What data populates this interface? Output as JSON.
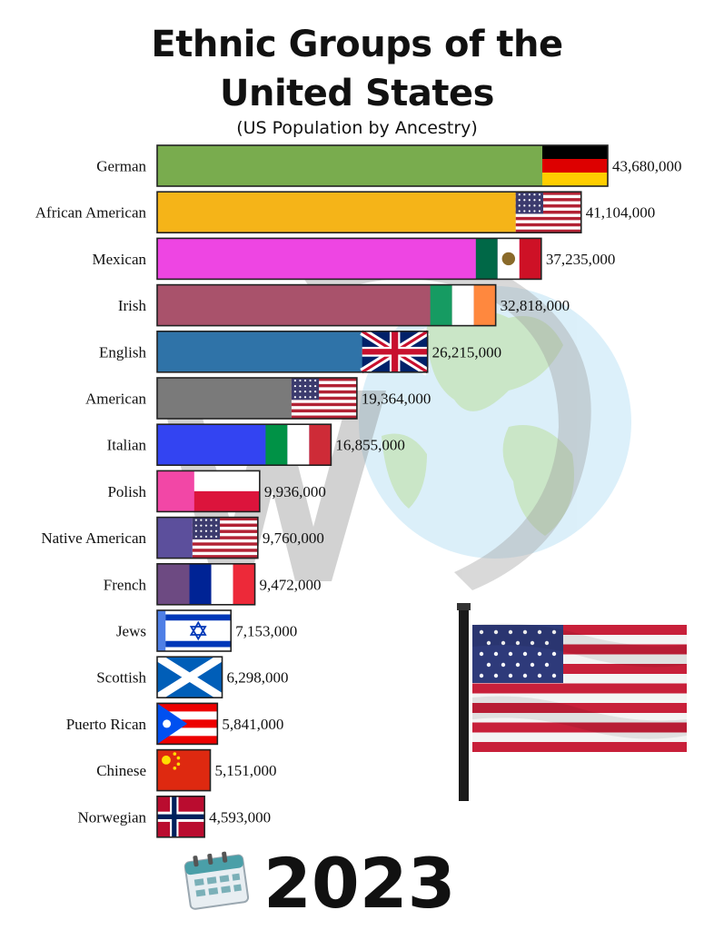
{
  "chart_data": {
    "type": "bar",
    "orientation": "horizontal",
    "title": "Ethnic Groups of the United States",
    "title_lines": [
      "Ethnic Groups of the",
      "United States"
    ],
    "subtitle": "(US Population by Ancestry)",
    "year": "2023",
    "xlim": [
      0,
      43680000
    ],
    "grid": false,
    "legend": "none",
    "categories": [
      "German",
      "African American",
      "Mexican",
      "Irish",
      "English",
      "American",
      "Italian",
      "Polish",
      "Native American",
      "French",
      "Jews",
      "Scottish",
      "Puerto Rican",
      "Chinese",
      "Norwegian"
    ],
    "values": [
      43680000,
      41104000,
      37235000,
      32818000,
      26215000,
      19364000,
      16855000,
      9936000,
      9760000,
      9472000,
      7153000,
      6298000,
      5841000,
      5151000,
      4593000
    ],
    "value_labels": [
      "43,680,000",
      "41,104,000",
      "37,235,000",
      "32,818,000",
      "26,215,000",
      "19,364,000",
      "16,855,000",
      "9,936,000",
      "9,760,000",
      "9,472,000",
      "7,153,000",
      "6,298,000",
      "5,841,000",
      "5,151,000",
      "4,593,000"
    ],
    "colors": [
      "#79ac4e",
      "#f5b418",
      "#ee45e3",
      "#a9526b",
      "#2f73a8",
      "#7a7a7a",
      "#3344f2",
      "#f247a6",
      "#5c4f9c",
      "#6d4a82",
      "#4f7fe6",
      "#1b62b3",
      "#d9273a",
      "#e02010",
      "#c42733"
    ],
    "flags": [
      "germany-flag-icon",
      "usa-flag-icon",
      "mexico-flag-icon",
      "ireland-flag-icon",
      "uk-flag-icon",
      "usa-flag-icon",
      "italy-flag-icon",
      "poland-flag-icon",
      "usa-flag-icon",
      "france-flag-icon",
      "israel-flag-icon",
      "scotland-flag-icon",
      "puerto-rico-flag-icon",
      "china-flag-icon",
      "norway-flag-icon"
    ]
  },
  "decorations": {
    "background": "globe-watermark",
    "waving_flag": "waving-us-flag-icon",
    "calendar": "calendar-icon"
  }
}
